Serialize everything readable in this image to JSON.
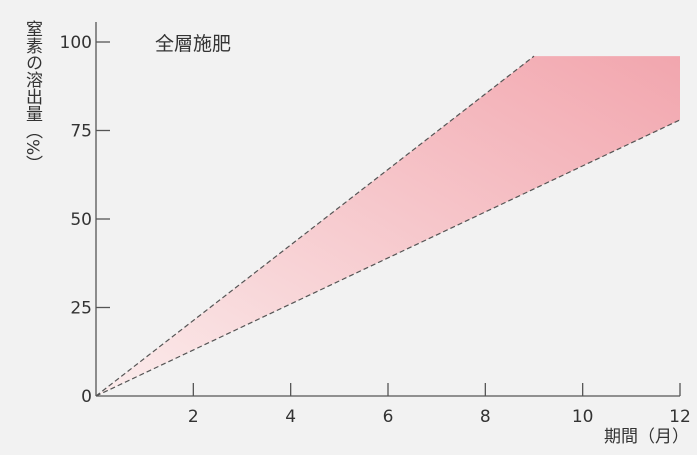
{
  "chart_data": {
    "type": "area",
    "title": "全層施肥",
    "xlabel": "期間（月）",
    "ylabel": "窒素の溶出量（%）",
    "xlim": [
      0,
      12
    ],
    "ylim": [
      0,
      100
    ],
    "x_ticks": [
      2,
      4,
      6,
      8,
      10,
      12
    ],
    "x_tick_labels": [
      "2",
      "4",
      "6",
      "8",
      "10",
      "12"
    ],
    "y_ticks": [
      0,
      25,
      50,
      75,
      100
    ],
    "y_tick_labels": [
      "0",
      "25",
      "50",
      "75",
      "100"
    ],
    "band_ceiling": 96,
    "series": [
      {
        "values": [
          [
            0,
            0
          ],
          [
            9,
            96
          ]
        ]
      },
      {
        "values": [
          [
            0,
            0
          ],
          [
            12,
            78
          ]
        ]
      }
    ],
    "grid": false,
    "colors": {
      "band": "#f2a6ae",
      "band_light": "#fbecec",
      "axis": "#555555",
      "boundary": "#555555"
    }
  }
}
